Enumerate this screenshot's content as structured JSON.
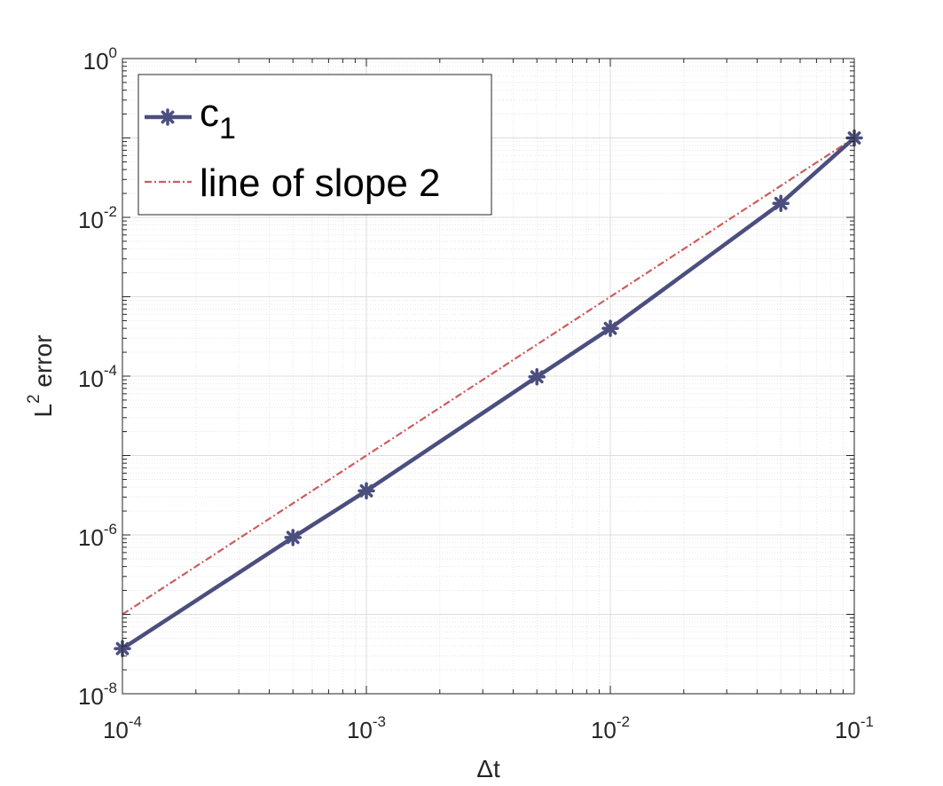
{
  "chart_data": {
    "type": "line",
    "scale": {
      "x": "log",
      "y": "log"
    },
    "xlabel": "Δt",
    "ylabel_base": "L",
    "ylabel_exp": "2",
    "ylabel_rest": " error",
    "xlim": [
      0.0001,
      0.1
    ],
    "ylim": [
      1e-08,
      1
    ],
    "grid": true,
    "minor_grid": true,
    "legend_position": "top-left",
    "x_ticks": [
      {
        "base": "10",
        "exp": "-4"
      },
      {
        "base": "10",
        "exp": "-3"
      },
      {
        "base": "10",
        "exp": "-2"
      },
      {
        "base": "10",
        "exp": "-1"
      }
    ],
    "y_ticks": [
      {
        "base": "10",
        "exp": "-8"
      },
      {
        "base": "10",
        "exp": "-6"
      },
      {
        "base": "10",
        "exp": "-4"
      },
      {
        "base": "10",
        "exp": "-2"
      },
      {
        "base": "10",
        "exp": "0"
      }
    ],
    "series": [
      {
        "name_base": "c",
        "name_sub": "1",
        "color": "#4B4E7E",
        "style": "solid",
        "marker": "asterisk",
        "x": [
          0.0001,
          0.0005,
          0.001,
          0.005,
          0.01,
          0.05,
          0.1
        ],
        "y": [
          3.7e-08,
          9.3e-07,
          3.6e-06,
          9.8e-05,
          0.0004,
          0.015,
          0.1
        ]
      },
      {
        "name": "line of slope 2",
        "color": "#CD5C5C",
        "style": "dashdot",
        "marker": "none",
        "x": [
          0.0001,
          0.1
        ],
        "y": [
          1e-07,
          0.1
        ]
      }
    ]
  }
}
